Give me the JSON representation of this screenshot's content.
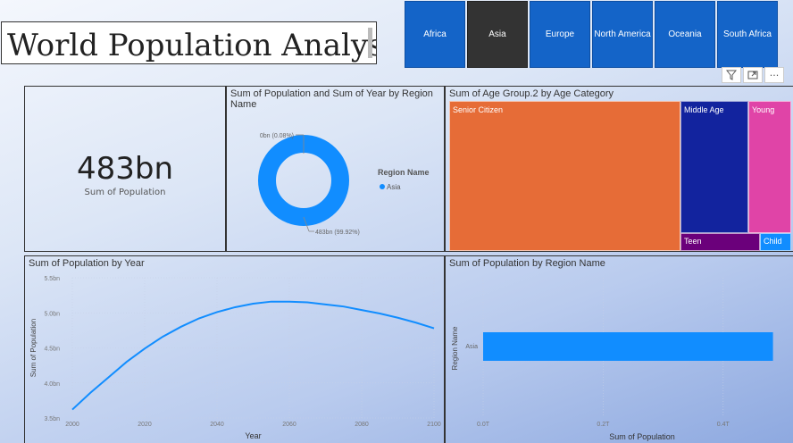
{
  "title": "World Population Analysis",
  "slicer": {
    "items": [
      "Africa",
      "Asia",
      "Europe",
      "North America",
      "Oceania",
      "South Africa"
    ],
    "selected": "Asia"
  },
  "toolbar": {
    "filter_icon": "filter-icon",
    "focus_icon": "focus-mode-icon",
    "more_icon": "more-options-icon"
  },
  "card": {
    "value": "483bn",
    "label": "Sum of Population"
  },
  "donut": {
    "title": "Sum of Population and Sum of Year by Region Name",
    "legend_title": "Region Name",
    "legend_item": "Asia",
    "label_small": "0bn (0.08%)",
    "label_large": "483bn (99.92%)",
    "color": "#118dff"
  },
  "treemap": {
    "title": "Sum of Age Group.2 by Age Category",
    "items": [
      {
        "label": "Senior Citizen",
        "color": "#e66c37"
      },
      {
        "label": "Middle Age",
        "color": "#12239e"
      },
      {
        "label": "Young",
        "color": "#e044a7"
      },
      {
        "label": "Teen",
        "color": "#6b007b"
      },
      {
        "label": "Child",
        "color": "#118dff"
      }
    ]
  },
  "line": {
    "title": "Sum of Population by Year"
  },
  "bar": {
    "title": "Sum of Population by Region Name"
  },
  "chart_data": [
    {
      "type": "line",
      "title": "Sum of Population by Year",
      "xlabel": "Year",
      "ylabel": "Sum of Population",
      "x_ticks": [
        "2000",
        "2020",
        "2040",
        "2060",
        "2080",
        "2100"
      ],
      "y_ticks": [
        "3.5bn",
        "4.0bn",
        "4.5bn",
        "5.0bn",
        "5.5bn"
      ],
      "xlim": [
        2000,
        2100
      ],
      "ylim": [
        3.5,
        5.5
      ],
      "x": [
        2000,
        2005,
        2010,
        2015,
        2020,
        2025,
        2030,
        2035,
        2040,
        2045,
        2050,
        2055,
        2060,
        2065,
        2070,
        2075,
        2080,
        2085,
        2090,
        2095,
        2100
      ],
      "y": [
        3.62,
        3.86,
        4.08,
        4.3,
        4.49,
        4.66,
        4.8,
        4.92,
        5.01,
        5.08,
        5.13,
        5.16,
        5.16,
        5.15,
        5.12,
        5.09,
        5.04,
        4.99,
        4.93,
        4.86,
        4.78
      ],
      "color": "#118dff",
      "grid": true
    },
    {
      "type": "bar",
      "orientation": "horizontal",
      "title": "Sum of Population by Region Name",
      "xlabel": "Sum of Population",
      "ylabel": "Region Name",
      "categories": [
        "Asia"
      ],
      "values": [
        0.483
      ],
      "x_ticks": [
        "0.0T",
        "0.2T",
        "0.4T"
      ],
      "xlim": [
        0,
        0.5
      ],
      "color": "#118dff"
    }
  ]
}
